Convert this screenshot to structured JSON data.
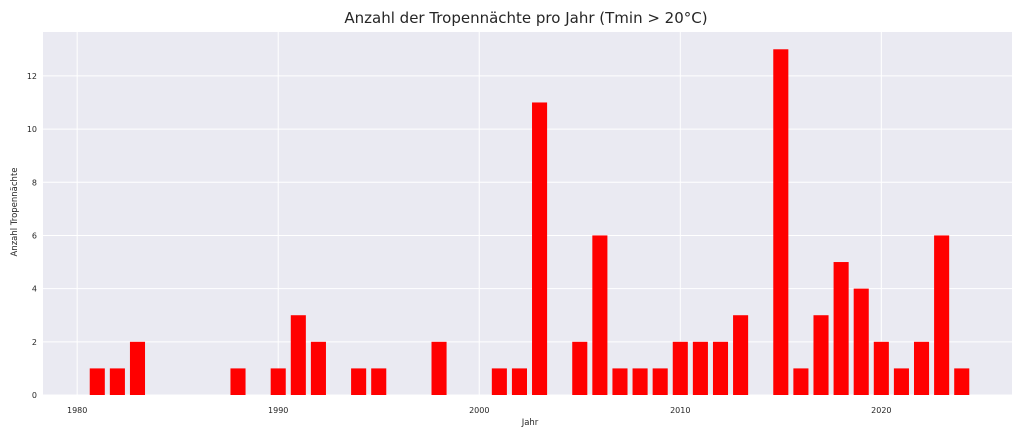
{
  "chart_data": {
    "type": "bar",
    "title": "Anzahl der Tropennächte pro Jahr (Tmin > 20°C)",
    "xlabel": "Jahr",
    "ylabel": "Anzahl Tropennächte",
    "x": [
      1981,
      1982,
      1983,
      1988,
      1990,
      1991,
      1992,
      1994,
      1995,
      1998,
      2001,
      2002,
      2003,
      2005,
      2006,
      2007,
      2008,
      2009,
      2010,
      2011,
      2012,
      2013,
      2015,
      2016,
      2017,
      2018,
      2019,
      2020,
      2021,
      2022,
      2023,
      2024
    ],
    "values": [
      1,
      1,
      2,
      1,
      1,
      3,
      2,
      1,
      1,
      2,
      1,
      1,
      11,
      2,
      6,
      1,
      1,
      1,
      2,
      2,
      2,
      3,
      13,
      1,
      3,
      5,
      4,
      2,
      1,
      2,
      6,
      1
    ],
    "xlim": [
      1978.3,
      2026.5
    ],
    "ylim": [
      0,
      13.65
    ],
    "xticks": [
      1980,
      1990,
      2000,
      2010,
      2020
    ],
    "yticks": [
      0,
      2,
      4,
      6,
      8,
      10,
      12
    ],
    "bar_color": "#ff0000",
    "background": "#eaeaf2",
    "grid": true,
    "legend": "none"
  }
}
